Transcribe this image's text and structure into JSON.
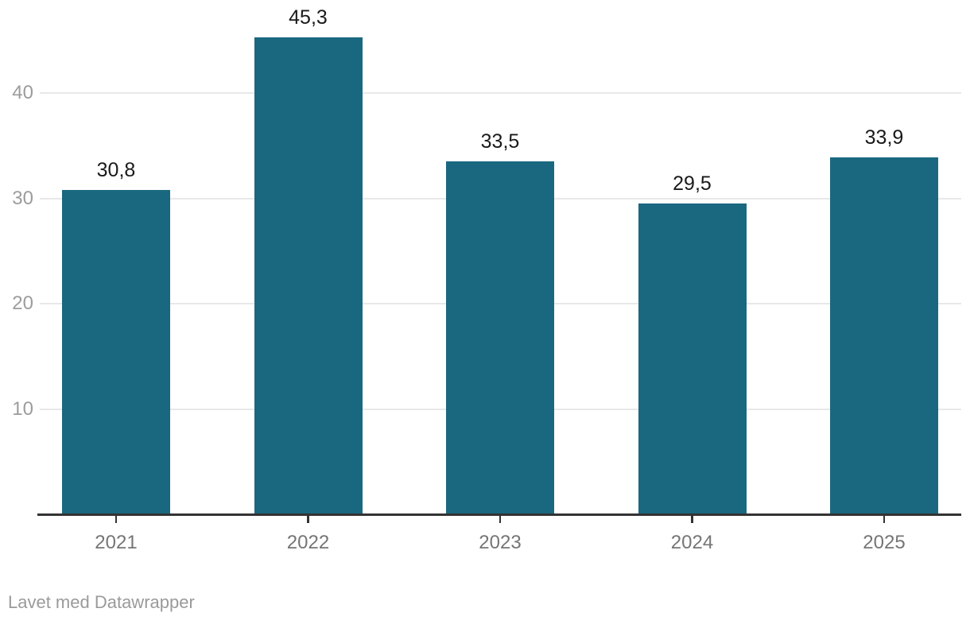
{
  "chart_data": {
    "type": "bar",
    "categories": [
      "2021",
      "2022",
      "2023",
      "2024",
      "2025"
    ],
    "values": [
      30.8,
      45.3,
      33.5,
      29.5,
      33.9
    ],
    "value_labels": [
      "30,8",
      "45,3",
      "33,5",
      "29,5",
      "33,9"
    ],
    "title": "",
    "xlabel": "",
    "ylabel": "",
    "ylim": [
      0,
      48
    ],
    "yticks": [
      10,
      20,
      30,
      40
    ],
    "grid": "horizontal-only",
    "legend": "none",
    "colors": {
      "bar": "#1a6880",
      "value_label": "#1a1a1a",
      "axis_line": "#333333",
      "gridline": "#e8e8e8",
      "y_tick_label": "#9c9c9c",
      "x_tick_label": "#757575",
      "background": "#ffffff"
    }
  },
  "footer": {
    "attribution": "Lavet med Datawrapper"
  }
}
